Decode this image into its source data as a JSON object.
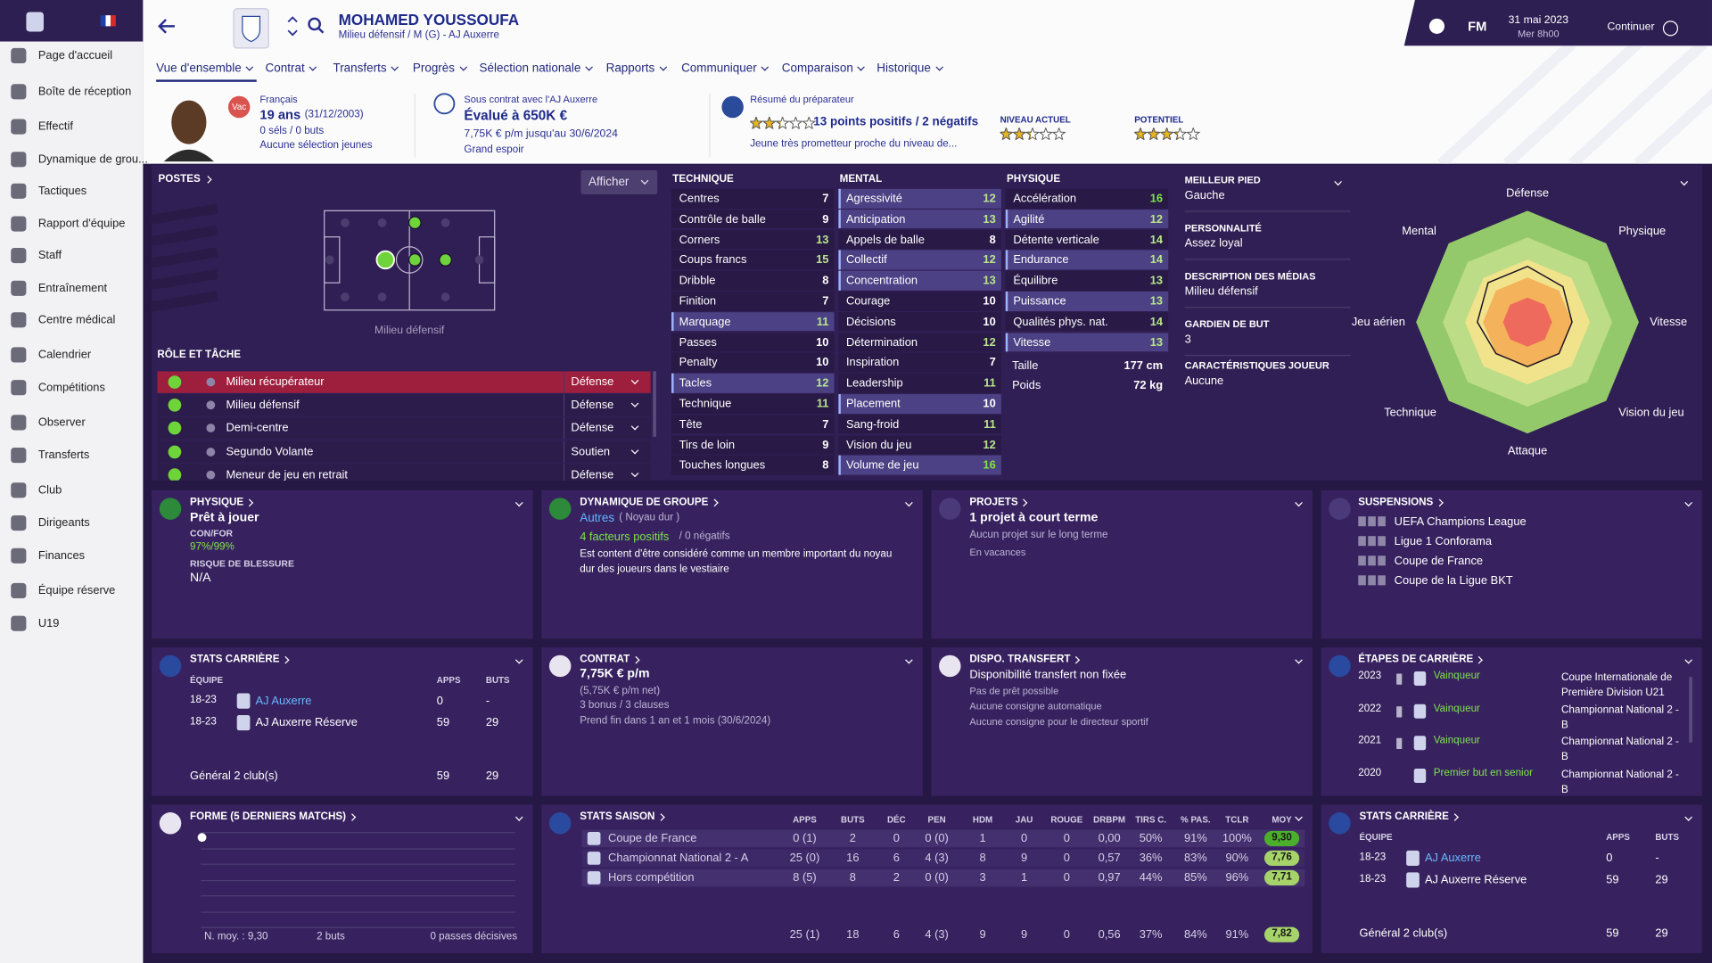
{
  "sidebar": {
    "items": [
      "Page d'accueil",
      "Boîte de réception",
      "Effectif",
      "Dynamique de grou...",
      "Tactiques",
      "Rapport d'équipe",
      "Staff",
      "Entraînement",
      "Centre médical",
      "Calendrier",
      "Compétitions",
      "Observer",
      "Transferts",
      "Club",
      "Dirigeants",
      "Finances",
      "Équipe réserve",
      "U19"
    ]
  },
  "header": {
    "name": "MOHAMED YOUSSOUFA",
    "subtitle": "Milieu défensif / M (G) - AJ Auxerre",
    "brand": "FM",
    "date": "31 mai 2023",
    "time": "Mer 8h00",
    "continue": "Continuer"
  },
  "tabs": [
    "Vue d'ensemble",
    "Contrat",
    "Transferts",
    "Progrès",
    "Sélection nationale",
    "Rapports",
    "Communiquer",
    "Comparaison",
    "Historique"
  ],
  "profile": {
    "nationality": "Français",
    "badge": "Vac",
    "age": "19 ans",
    "dob": "(31/12/2003)",
    "caps": "0 séls / 0 buts",
    "youth": "Aucune sélection jeunes",
    "contract_club": "Sous contrat avec l'AJ Auxerre",
    "value": "Évalué à 650K €",
    "wage": "7,75K € p/m jusqu'au 30/6/2024",
    "status": "Grand espoir",
    "report_title": "Résumé du préparateur",
    "report_stars": 2.5,
    "report_points": "13 points positifs / 2 négatifs",
    "report_text": "Jeune très prometteur proche du niveau de...",
    "current_label": "NIVEAU ACTUEL",
    "current_stars": 2.5,
    "potential_label": "POTENTIEL",
    "potential_stars": 3.5
  },
  "positions": {
    "title": "POSTES",
    "button": "Afficher",
    "label": "Milieu défensif",
    "roles_title": "RÔLE ET TÂCHE",
    "roles": [
      {
        "role": "Milieu récupérateur",
        "duty": "Défense"
      },
      {
        "role": "Milieu défensif",
        "duty": "Défense"
      },
      {
        "role": "Demi-centre",
        "duty": "Défense"
      },
      {
        "role": "Segundo Volante",
        "duty": "Soutien"
      },
      {
        "role": "Meneur de jeu en retrait",
        "duty": "Défense"
      }
    ]
  },
  "attributes": {
    "groups": [
      {
        "title": "TECHNIQUE",
        "rows": [
          {
            "name": "Centres",
            "value": 7
          },
          {
            "name": "Contrôle de balle",
            "value": 9
          },
          {
            "name": "Corners",
            "value": 13
          },
          {
            "name": "Coups francs",
            "value": 15
          },
          {
            "name": "Dribble",
            "value": 8
          },
          {
            "name": "Finition",
            "value": 7
          },
          {
            "name": "Marquage",
            "value": 11,
            "key": true
          },
          {
            "name": "Passes",
            "value": 10
          },
          {
            "name": "Penalty",
            "value": 10
          },
          {
            "name": "Tacles",
            "value": 12,
            "key": true
          },
          {
            "name": "Technique",
            "value": 11
          },
          {
            "name": "Tête",
            "value": 7
          },
          {
            "name": "Tirs de loin",
            "value": 9
          },
          {
            "name": "Touches longues",
            "value": 8
          }
        ]
      },
      {
        "title": "MENTAL",
        "rows": [
          {
            "name": "Agressivité",
            "value": 12,
            "key": true
          },
          {
            "name": "Anticipation",
            "value": 13,
            "key": true
          },
          {
            "name": "Appels de balle",
            "value": 8
          },
          {
            "name": "Collectif",
            "value": 12,
            "key": true
          },
          {
            "name": "Concentration",
            "value": 13,
            "key": true
          },
          {
            "name": "Courage",
            "value": 10
          },
          {
            "name": "Décisions",
            "value": 10
          },
          {
            "name": "Détermination",
            "value": 12
          },
          {
            "name": "Inspiration",
            "value": 7
          },
          {
            "name": "Leadership",
            "value": 11
          },
          {
            "name": "Placement",
            "value": 10,
            "key": true
          },
          {
            "name": "Sang-froid",
            "value": 11
          },
          {
            "name": "Vision du jeu",
            "value": 12
          },
          {
            "name": "Volume de jeu",
            "value": 16,
            "key": true
          }
        ]
      },
      {
        "title": "PHYSIQUE",
        "rows": [
          {
            "name": "Accélération",
            "value": 16
          },
          {
            "name": "Agilité",
            "value": 12,
            "key": true
          },
          {
            "name": "Détente verticale",
            "value": 14
          },
          {
            "name": "Endurance",
            "value": 14,
            "key": true
          },
          {
            "name": "Équilibre",
            "value": 13
          },
          {
            "name": "Puissance",
            "value": 13,
            "key": true
          },
          {
            "name": "Qualités phys. nat.",
            "value": 14
          },
          {
            "name": "Vitesse",
            "value": 13,
            "key": true
          }
        ]
      }
    ],
    "height_label": "Taille",
    "height": "177 cm",
    "weight_label": "Poids",
    "weight": "72 kg"
  },
  "info": [
    {
      "label": "MEILLEUR PIED",
      "value": "Gauche"
    },
    {
      "label": "PERSONNALITÉ",
      "value": "Assez loyal"
    },
    {
      "label": "DESCRIPTION DES MÉDIAS",
      "value": "Milieu défensif"
    },
    {
      "label": "GARDIEN DE BUT",
      "value": "3"
    },
    {
      "label": "CARACTÉRISTIQUES JOUEUR",
      "value": "Aucune"
    }
  ],
  "radar": {
    "axes": [
      "Défense",
      "Physique",
      "Vitesse",
      "Vision du jeu",
      "Attaque",
      "Technique",
      "Jeu aérien",
      "Mental"
    ],
    "values": [
      10,
      9,
      8,
      8,
      8,
      8,
      9,
      10
    ],
    "rlim": [
      0,
      20
    ]
  },
  "panels": {
    "physique": {
      "title": "PHYSIQUE",
      "status": "Prêt à jouer",
      "confor_label": "CON/FOR",
      "confor": "97%/99%",
      "risk_label": "RISQUE DE BLESSURE",
      "risk": "N/A"
    },
    "dynamics": {
      "title": "DYNAMIQUE DE GROUPE",
      "group": "Autres",
      "subgroup": "( Noyau dur )",
      "positive": "4 facteurs positifs",
      "negative": "/ 0 négatifs",
      "text": "Est content d'être considéré comme un membre important du noyau dur des joueurs dans le vestiaire"
    },
    "projects": {
      "title": "PROJETS",
      "short": "1 projet à court terme",
      "long": "Aucun projet sur le long terme",
      "note": "En vacances"
    },
    "suspensions": {
      "title": "SUSPENSIONS",
      "items": [
        "UEFA Champions League",
        "Ligue 1 Conforama",
        "Coupe de France",
        "Coupe de la Ligue BKT"
      ]
    },
    "career": {
      "title": "STATS CARRIÈRE",
      "headers": [
        "ÉQUIPE",
        "APPS",
        "BUTS"
      ],
      "rows": [
        [
          "18-23",
          "AJ Auxerre",
          "0",
          "-"
        ],
        [
          "18-23",
          "AJ Auxerre Réserve",
          "59",
          "29"
        ]
      ],
      "total": [
        "Général 2 club(s)",
        "59",
        "29"
      ]
    },
    "contract": {
      "title": "CONTRAT",
      "wage": "7,75K € p/m",
      "net": "(5,75K € p/m net)",
      "clauses": "3 bonus / 3 clauses",
      "end": "Prend fin dans 1 an et 1 mois (30/6/2024)"
    },
    "transfer": {
      "title": "DISPO. TRANSFERT",
      "status": "Disponibilité transfert non fixée",
      "lines": [
        "Pas de prêt possible",
        "Aucune consigne automatique",
        "Aucune consigne pour le directeur sportif"
      ]
    },
    "milestones": {
      "title": "ÉTAPES DE CARRIÈRE",
      "rows": [
        [
          "2023",
          "Vainqueur",
          "Coupe Internationale de Première Division U21"
        ],
        [
          "2022",
          "Vainqueur",
          "Championnat National 2 - B"
        ],
        [
          "2021",
          "Vainqueur",
          "Championnat National 2 - B"
        ],
        [
          "2020",
          "Premier but en senior",
          "Championnat National 2 - B"
        ]
      ]
    },
    "form": {
      "title": "FORME (5 DERNIERS MATCHS)",
      "average": "N. moy. : 9,30",
      "goals": "2 buts",
      "assists": "0 passes décisives"
    },
    "season": {
      "title": "STATS SAISON",
      "headers": [
        "APPS",
        "BUTS",
        "DÉC",
        "PEN",
        "HDM",
        "JAU",
        "ROUGE",
        "DRBPM",
        "TIRS C.",
        "% PAS.",
        "TCLR",
        "MOY"
      ],
      "rows": [
        [
          "Coupe de France",
          "0 (1)",
          "2",
          "0",
          "0 (0)",
          "1",
          "0",
          "0",
          "0,00",
          "50%",
          "91%",
          "100%",
          "9,30"
        ],
        [
          "Championnat National 2 - A",
          "25 (0)",
          "16",
          "6",
          "4 (3)",
          "8",
          "9",
          "0",
          "0,57",
          "36%",
          "83%",
          "90%",
          "7,76"
        ],
        [
          "Hors compétition",
          "8 (5)",
          "8",
          "2",
          "0 (0)",
          "3",
          "1",
          "0",
          "0,97",
          "44%",
          "85%",
          "96%",
          "7,71"
        ]
      ],
      "total": [
        "25 (1)",
        "18",
        "6",
        "4 (3)",
        "9",
        "9",
        "0",
        "0,56",
        "37%",
        "84%",
        "91%",
        "7,82"
      ]
    }
  }
}
